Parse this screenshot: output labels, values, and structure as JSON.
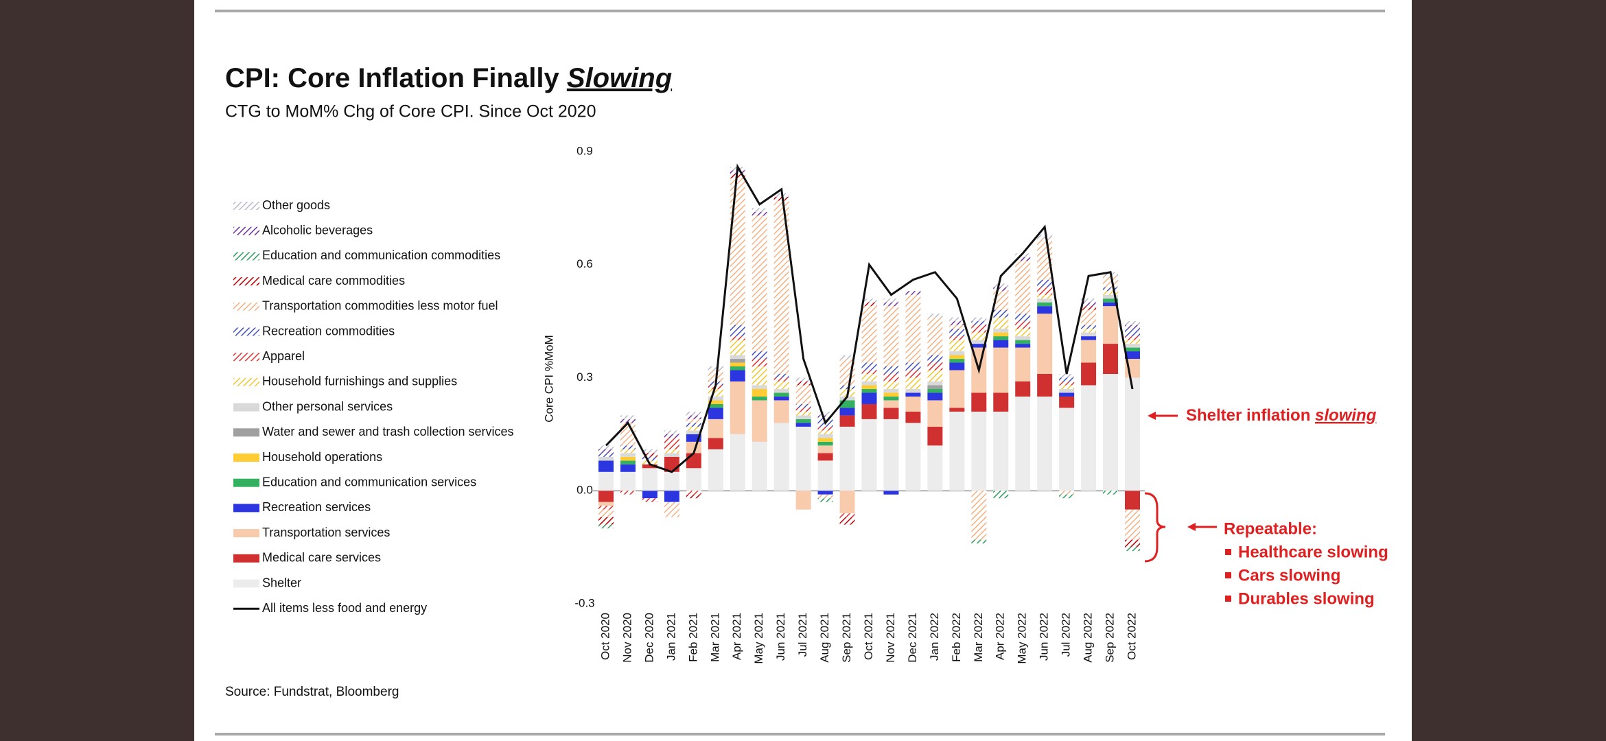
{
  "chart_data": {
    "type": "stacked_bar",
    "title": "CPI: Core Inflation Finally",
    "title_emphasis": "Slowing",
    "subtitle": "CTG to MoM% Chg of Core CPI. Since Oct 2020",
    "y_label": "Core CPI %MoM",
    "source": "Source: Fundstrat, Bloomberg",
    "annotations": {
      "shelter": "Shelter inflation",
      "shelter_emphasis": "slowing",
      "repeatable": "Repeatable:",
      "bullets": [
        "Healthcare slowing",
        "Cars slowing",
        "Durables slowing"
      ]
    },
    "ylim": [
      -0.3,
      0.9
    ],
    "yticks": [
      {
        "value": -0.3,
        "label": "-0.3"
      },
      {
        "value": 0,
        "label": "0.0"
      },
      0.3,
      0.6,
      0.9
    ],
    "grid": false,
    "categories": [
      "Oct 2020",
      "Nov 2020",
      "Dec 2020",
      "Jan 2021",
      "Feb 2021",
      "Mar 2021",
      "Apr 2021",
      "May 2021",
      "Jun 2021",
      "Jul 2021",
      "Aug 2021",
      "Sep 2021",
      "Oct 2021",
      "Nov 2021",
      "Dec 2021",
      "Jan 2022",
      "Feb 2022",
      "Mar 2022",
      "Apr 2022",
      "May 2022",
      "Jun 2022",
      "Jul 2022",
      "Aug 2022",
      "Sep 2022",
      "Oct 2022"
    ],
    "series": [
      {
        "name": "Other goods",
        "color": "#b8b8cc",
        "pattern": "hatch",
        "values": [
          0.01,
          0.01,
          0.01,
          0.01,
          0.01,
          0.01,
          0.01,
          0.01,
          0.01,
          0.01,
          0.01,
          0.01,
          0.01,
          0.01,
          0,
          0.01,
          0.01,
          0.01,
          0.01,
          0.01,
          0.01,
          0.01,
          0.01,
          0.01,
          0.01
        ]
      },
      {
        "name": "Alcoholic beverages",
        "color": "#7030a0",
        "pattern": "hatch",
        "values": [
          0.01,
          0.01,
          0,
          0.01,
          0.01,
          0,
          0.01,
          0.01,
          0,
          0,
          0.01,
          0,
          0,
          0.01,
          0.01,
          0,
          0.01,
          0,
          0.01,
          0.01,
          0,
          0,
          0.01,
          0,
          0.01
        ]
      },
      {
        "name": "Education and communication commodities",
        "color": "#2e9e5e",
        "pattern": "hatch",
        "values": [
          -0.01,
          0,
          0,
          0,
          0,
          0,
          0,
          0,
          0,
          0,
          -0.01,
          0,
          0,
          0,
          0,
          0,
          0,
          -0.01,
          -0.02,
          0,
          0,
          -0.01,
          0,
          -0.01,
          -0.01
        ]
      },
      {
        "name": "Medical care commodities",
        "color": "#c00000",
        "pattern": "hatch",
        "values": [
          -0.02,
          0,
          0.01,
          0,
          -0.01,
          0,
          0.01,
          0,
          0.01,
          0.01,
          0,
          -0.02,
          0.01,
          0,
          0,
          0,
          0,
          0,
          0,
          0,
          0,
          0,
          0.01,
          0,
          -0.02
        ]
      },
      {
        "name": "Transportation commodities less motor fuel",
        "color": "#f4b183",
        "pattern": "hatch",
        "values": [
          -0.02,
          0.06,
          0,
          -0.04,
          0.01,
          0.03,
          0.39,
          0.36,
          0.46,
          0.05,
          -0.01,
          0.07,
          0.15,
          0.16,
          0.18,
          0.1,
          0.01,
          -0.13,
          0.05,
          0.14,
          0.11,
          -0.01,
          0.04,
          0.03,
          -0.08
        ]
      },
      {
        "name": "Recreation commodities",
        "color": "#3f4fbf",
        "pattern": "hatch",
        "values": [
          0.01,
          0.01,
          0.01,
          0,
          0.01,
          0.01,
          0.03,
          0.02,
          0.01,
          0.01,
          0.02,
          0.01,
          0.02,
          0.02,
          0.02,
          0.02,
          0.02,
          0.01,
          0.02,
          0.02,
          0.02,
          0.01,
          0.01,
          0.01,
          0.02
        ]
      },
      {
        "name": "Apparel",
        "color": "#e03030",
        "pattern": "hatch",
        "values": [
          -0.01,
          -0.01,
          -0.01,
          0.03,
          -0.01,
          0.01,
          0.01,
          0.02,
          0.01,
          0.01,
          0.01,
          -0.01,
          0.01,
          0.02,
          0.02,
          0.02,
          0.01,
          0.02,
          0,
          0.02,
          0.02,
          0.01,
          0,
          0,
          0.01
        ]
      },
      {
        "name": "Household furnishings and supplies",
        "color": "#f0c830",
        "pattern": "hatch",
        "values": [
          0,
          0.01,
          0.01,
          0.01,
          0.01,
          0.02,
          0.04,
          0.05,
          0.02,
          0.01,
          0.01,
          0.02,
          0.02,
          0.02,
          0.03,
          0.03,
          0.03,
          0.02,
          0.03,
          0.02,
          0.01,
          0.01,
          0.01,
          0.01,
          0.01
        ]
      },
      {
        "name": "Other personal services",
        "color": "#d9d9d9",
        "pattern": "solid",
        "values": [
          0.01,
          0.01,
          0,
          0.01,
          0.01,
          0.01,
          0.01,
          0.01,
          0.01,
          0.01,
          0.01,
          0.01,
          0.01,
          0.01,
          0.01,
          0.01,
          0.01,
          0.01,
          0.01,
          0.01,
          0.01,
          0.01,
          0.01,
          0.01,
          0.01
        ]
      },
      {
        "name": "Water and sewer and trash collection services",
        "color": "#a0a0a0",
        "pattern": "solid",
        "values": [
          0,
          0,
          0,
          0,
          0,
          0,
          0.01,
          0,
          0,
          0,
          0,
          0,
          0,
          0,
          0,
          0.01,
          0,
          0,
          0,
          0,
          0,
          0,
          0,
          0,
          0
        ]
      },
      {
        "name": "Household operations",
        "color": "#ffcc33",
        "pattern": "solid",
        "values": [
          0,
          0.01,
          0,
          0,
          0,
          0.01,
          0.01,
          0.02,
          0,
          0,
          0.01,
          0,
          0.01,
          0.01,
          0,
          0,
          0.01,
          0,
          0.01,
          0,
          0,
          0,
          0,
          0,
          0
        ]
      },
      {
        "name": "Education and communication services",
        "color": "#33b060",
        "pattern": "solid",
        "values": [
          0,
          0.01,
          0,
          0,
          0,
          0.01,
          0.01,
          0.01,
          0.01,
          0.01,
          0.01,
          0.02,
          0.01,
          0.01,
          0,
          0.01,
          0.01,
          0,
          0.01,
          0.01,
          0.01,
          0,
          0,
          0.01,
          0.01
        ]
      },
      {
        "name": "Recreation services",
        "color": "#2b35e0",
        "pattern": "solid",
        "values": [
          0.03,
          0.02,
          -0.02,
          -0.03,
          0.02,
          0.03,
          0.03,
          0,
          0.01,
          0.01,
          -0.01,
          0.02,
          0.03,
          -0.01,
          0.01,
          0.02,
          0.02,
          0.01,
          0.02,
          0.01,
          0.02,
          0.01,
          0.01,
          0.01,
          0.02
        ]
      },
      {
        "name": "Transportation services",
        "color": "#f8cbad",
        "pattern": "solid",
        "values": [
          -0.01,
          0,
          0,
          0,
          0.03,
          0.05,
          0.14,
          0.11,
          0.06,
          -0.05,
          0.02,
          -0.06,
          0,
          0.02,
          0.04,
          0.07,
          0.1,
          0.12,
          0.12,
          0.09,
          0.16,
          0,
          0.06,
          0.1,
          0.05
        ]
      },
      {
        "name": "Medical care services",
        "color": "#d03030",
        "pattern": "solid",
        "values": [
          -0.03,
          0,
          0.01,
          0.04,
          0.04,
          0.03,
          0,
          0,
          0,
          0,
          0.02,
          0.03,
          0.04,
          0.03,
          0.03,
          0.05,
          0.01,
          0.05,
          0.05,
          0.04,
          0.06,
          0.03,
          0.06,
          0.08,
          -0.05
        ]
      },
      {
        "name": "Shelter",
        "color": "#ececec",
        "pattern": "solid",
        "values": [
          0.05,
          0.05,
          0.06,
          0.05,
          0.06,
          0.11,
          0.15,
          0.13,
          0.18,
          0.17,
          0.08,
          0.17,
          0.19,
          0.19,
          0.18,
          0.12,
          0.21,
          0.21,
          0.21,
          0.25,
          0.25,
          0.22,
          0.28,
          0.31,
          0.3
        ]
      }
    ],
    "line": {
      "name": "All items less food and energy",
      "color": "#111111",
      "values": [
        0.12,
        0.18,
        0.07,
        0.05,
        0.1,
        0.28,
        0.86,
        0.76,
        0.8,
        0.35,
        0.18,
        0.25,
        0.6,
        0.52,
        0.56,
        0.58,
        0.51,
        0.32,
        0.57,
        0.63,
        0.7,
        0.31,
        0.57,
        0.58,
        0.27
      ]
    }
  }
}
